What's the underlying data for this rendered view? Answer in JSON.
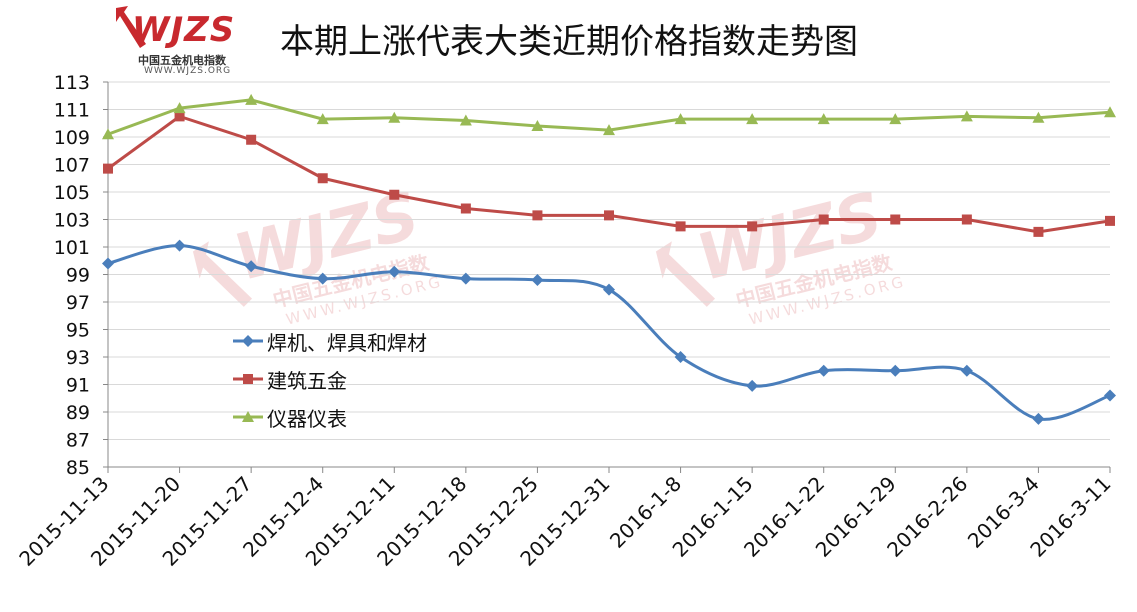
{
  "logo": {
    "word": "WJZS",
    "cn": "中国五金机电指数",
    "url": "WWW.WJZS.ORG"
  },
  "watermark": {
    "word": "WJZS",
    "cn": "中国五金机电指数",
    "url": "WWW.WJZS.ORG"
  },
  "chart_data": {
    "type": "line",
    "title": "本期上涨代表大类近期价格指数走势图",
    "categories": [
      "2015-11-13",
      "2015-11-20",
      "2015-11-27",
      "2015-12-4",
      "2015-12-11",
      "2015-12-18",
      "2015-12-25",
      "2015-12-31",
      "2016-1-8",
      "2016-1-15",
      "2016-1-22",
      "2016-1-29",
      "2016-2-26",
      "2016-3-4",
      "2016-3-11"
    ],
    "ylim": [
      85,
      113
    ],
    "yticks": [
      85,
      87,
      89,
      91,
      93,
      95,
      97,
      99,
      101,
      103,
      105,
      107,
      109,
      111,
      113
    ],
    "grid": true,
    "legend_position": "center-left",
    "series": [
      {
        "name": "焊机、焊具和焊材",
        "color": "#4a7ebb",
        "marker": "diamond",
        "smooth": true,
        "values": [
          99.8,
          101.1,
          99.6,
          98.7,
          99.2,
          98.7,
          98.6,
          97.9,
          93.0,
          90.9,
          92.0,
          92.0,
          92.0,
          88.5,
          90.2
        ]
      },
      {
        "name": "建筑五金",
        "color": "#be4b48",
        "marker": "square",
        "smooth": false,
        "values": [
          106.7,
          110.5,
          108.8,
          106.0,
          104.8,
          103.8,
          103.3,
          103.3,
          102.5,
          102.5,
          103.0,
          103.0,
          103.0,
          102.1,
          102.9
        ]
      },
      {
        "name": "仪器仪表",
        "color": "#98b954",
        "marker": "triangle",
        "smooth": false,
        "values": [
          109.2,
          111.1,
          111.7,
          110.3,
          110.4,
          110.2,
          109.8,
          109.5,
          110.3,
          110.3,
          110.3,
          110.3,
          110.5,
          110.4,
          110.8
        ]
      }
    ]
  }
}
